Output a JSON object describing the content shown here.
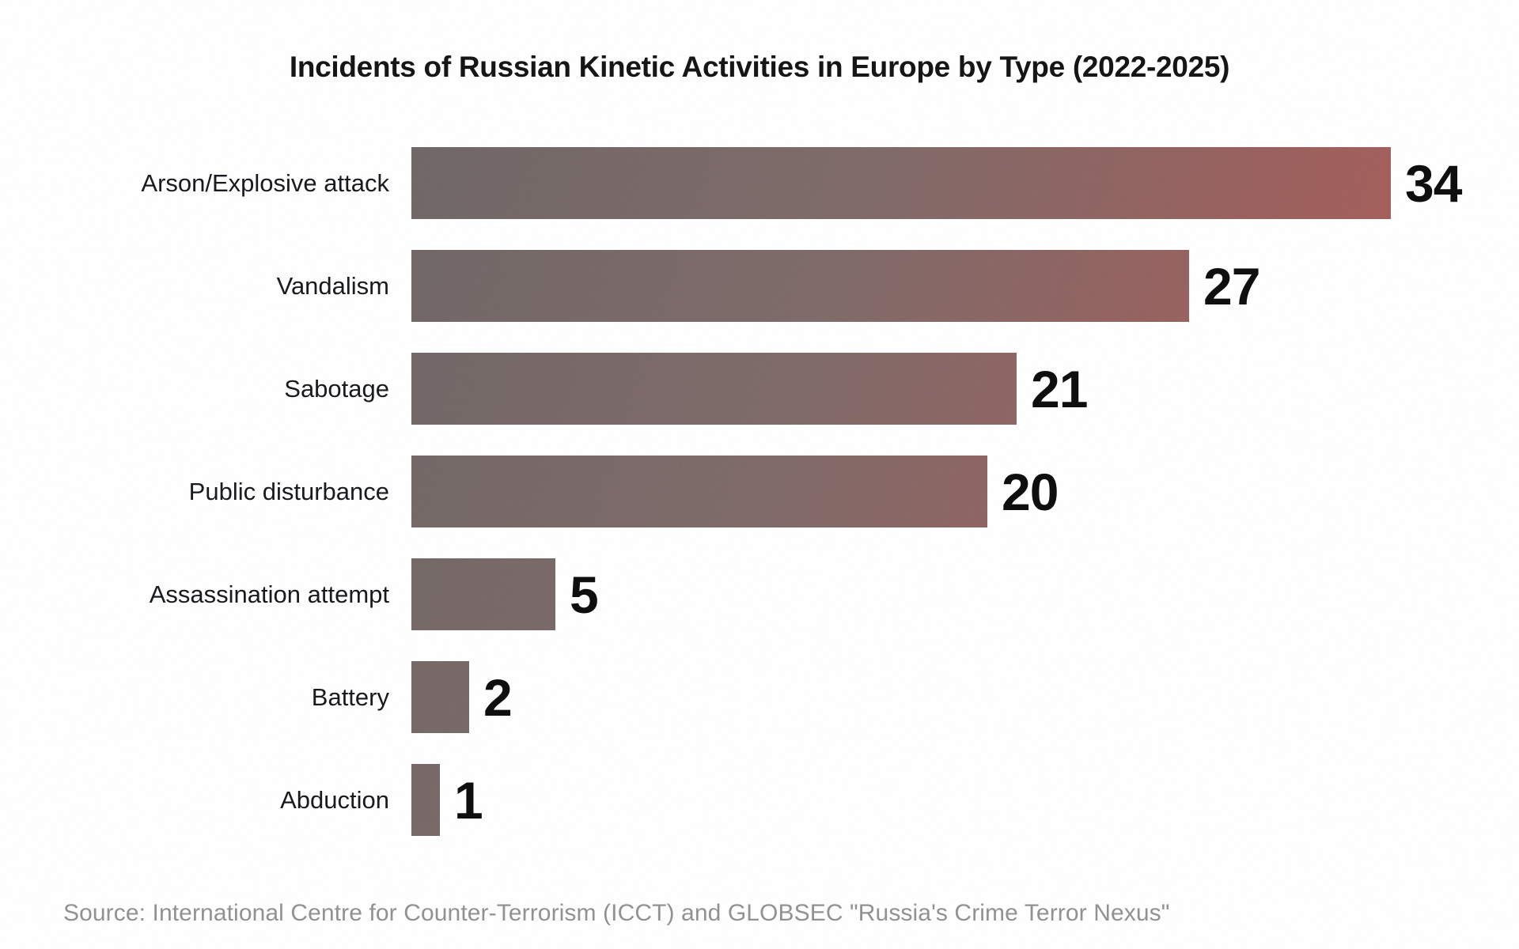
{
  "chart_data": {
    "type": "bar",
    "orientation": "horizontal",
    "title": "Incidents of Russian Kinetic Activities in Europe by Type (2022-2025)",
    "categories": [
      "Arson/Explosive attack",
      "Vandalism",
      "Sabotage",
      "Public disturbance",
      "Assassination attempt",
      "Battery",
      "Abduction"
    ],
    "values": [
      34,
      27,
      21,
      20,
      5,
      2,
      1
    ],
    "xlim": [
      0,
      34
    ],
    "value_labels_shown": true,
    "grid": "off",
    "legend": "none",
    "source": "Source: International Centre for Counter-Terrorism (ICCT) and GLOBSEC \"Russia's Crime Terror Nexus\"",
    "colors": {
      "background": "#ffffff",
      "bar_gradient_start": "#6b6161",
      "bar_gradient_end": "#b25450",
      "title_text": "#131313",
      "category_text": "#15181c",
      "value_text": "#0c0c0c",
      "source_text": "#8f9193"
    }
  }
}
